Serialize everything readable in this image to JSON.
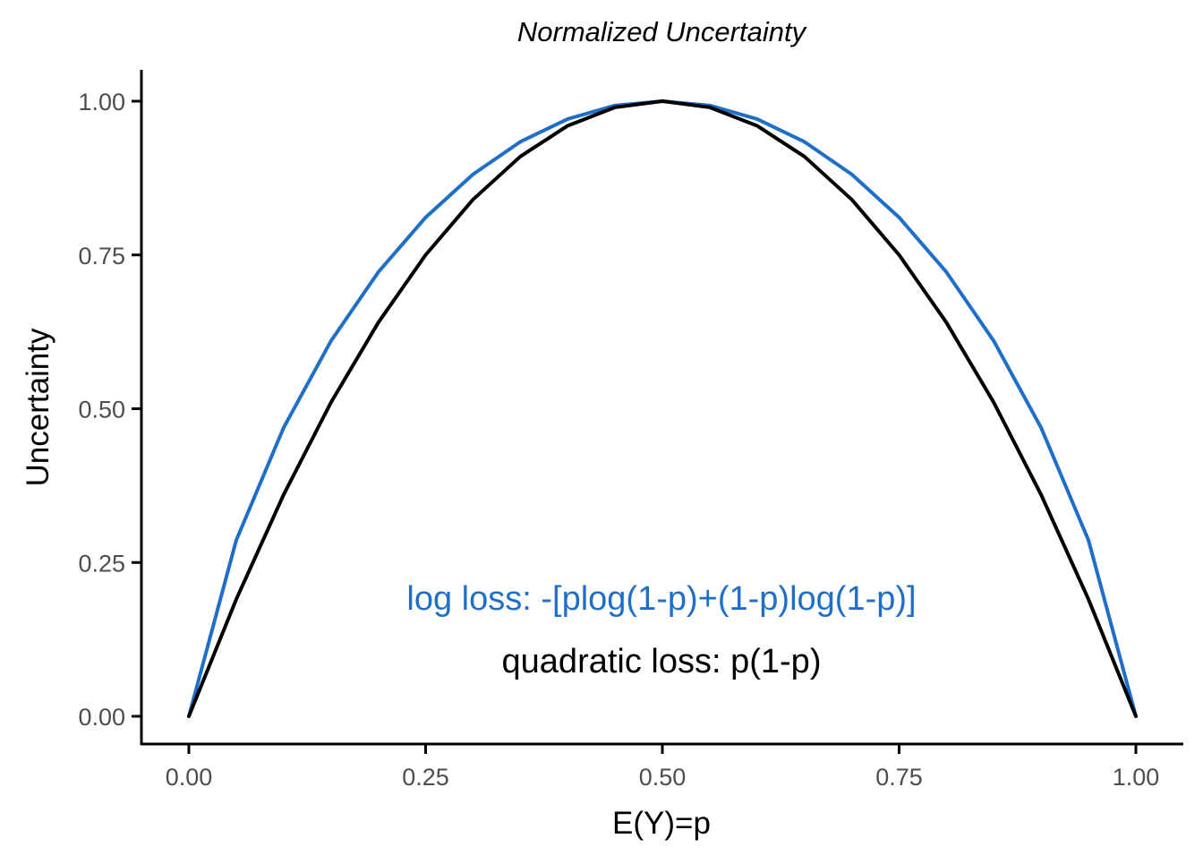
{
  "chart_data": {
    "type": "line",
    "title": "Normalized Uncertainty",
    "xlabel": "E(Y)=p",
    "ylabel": "Uncertainty",
    "xlim": [
      0,
      1
    ],
    "ylim": [
      0,
      1
    ],
    "x_ticks": [
      "0.00",
      "0.25",
      "0.50",
      "0.75",
      "1.00"
    ],
    "y_ticks": [
      "0.00",
      "0.25",
      "0.50",
      "0.75",
      "1.00"
    ],
    "grid": false,
    "x": [
      0.0,
      0.05,
      0.1,
      0.15,
      0.2,
      0.25,
      0.3,
      0.35,
      0.4,
      0.45,
      0.5,
      0.55,
      0.6,
      0.65,
      0.7,
      0.75,
      0.8,
      0.85,
      0.9,
      0.95,
      1.0
    ],
    "series": [
      {
        "id": "log",
        "color": "#1f6fc9",
        "values": [
          0.0,
          0.286,
          0.469,
          0.61,
          0.722,
          0.811,
          0.881,
          0.934,
          0.971,
          0.993,
          1.0,
          0.993,
          0.971,
          0.934,
          0.881,
          0.811,
          0.722,
          0.61,
          0.469,
          0.286,
          0.0
        ]
      },
      {
        "id": "quadratic",
        "color": "#000000",
        "values": [
          0.0,
          0.19,
          0.36,
          0.51,
          0.64,
          0.75,
          0.84,
          0.91,
          0.96,
          0.99,
          1.0,
          0.99,
          0.96,
          0.91,
          0.84,
          0.75,
          0.64,
          0.51,
          0.36,
          0.19,
          0.0
        ]
      }
    ],
    "annotations": [
      {
        "text": "log loss: -[plog(1-p)+(1-p)log(1-p)]",
        "color": "#1f6fc9"
      },
      {
        "text": "quadratic loss: p(1-p)",
        "color": "#000000"
      }
    ]
  }
}
